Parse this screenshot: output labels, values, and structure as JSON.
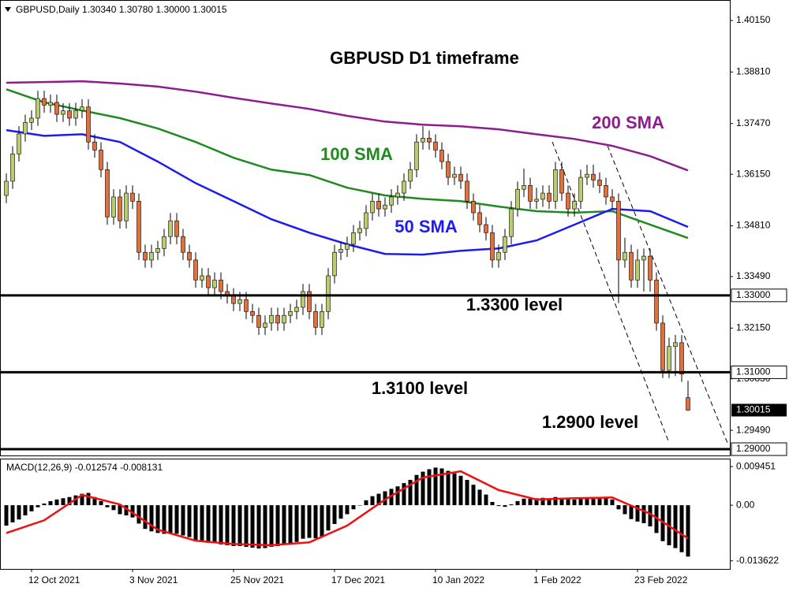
{
  "chart_data": {
    "type": "candlestick",
    "header": "GBPUSD,Daily  1.30340 1.30780 1.30000 1.30015",
    "title": "GBPUSD D1 timeframe",
    "xlim": [
      -1,
      114.625
    ],
    "xticks": [
      {
        "value": 4,
        "label": "12 Oct 2021"
      },
      {
        "value": 20,
        "label": "3 Nov 2021"
      },
      {
        "value": 36,
        "label": "25 Nov 2021"
      },
      {
        "value": 52,
        "label": "17 Dec 2021"
      },
      {
        "value": 68,
        "label": "10 Jan 2022"
      },
      {
        "value": 84,
        "label": "1 Feb 2022"
      },
      {
        "value": 100,
        "label": "23 Feb 2022"
      }
    ],
    "ylim": [
      1.28836,
      1.40683
    ],
    "yticks": [
      {
        "value": 1.4015,
        "label": "1.40150"
      },
      {
        "value": 1.3881,
        "label": "1.38810"
      },
      {
        "value": 1.3747,
        "label": "1.37470"
      },
      {
        "value": 1.3615,
        "label": "1.36150"
      },
      {
        "value": 1.3481,
        "label": "1.34810"
      },
      {
        "value": 1.3349,
        "label": "1.33490"
      },
      {
        "value": 1.3215,
        "label": "1.32150"
      },
      {
        "value": 1.3083,
        "label": "1.30830"
      },
      {
        "value": 1.2949,
        "label": "1.29490"
      }
    ],
    "up_color": "#b9cc70",
    "down_color": "#e2703c",
    "open": [
      1.356,
      1.3597,
      1.3668,
      1.372,
      1.375,
      1.3761,
      1.3812,
      1.3795,
      1.3802,
      1.3771,
      1.378,
      1.3761,
      1.3781,
      1.379,
      1.3699,
      1.3678,
      1.3627,
      1.3504,
      1.3556,
      1.3494,
      1.3566,
      1.3545,
      1.3412,
      1.3392,
      1.3412,
      1.3422,
      1.3453,
      1.3494,
      1.3453,
      1.3412,
      1.3392,
      1.334,
      1.3351,
      1.332,
      1.334,
      1.331,
      1.3299,
      1.3279,
      1.3289,
      1.3258,
      1.3248,
      1.3217,
      1.3228,
      1.3248,
      1.3228,
      1.3248,
      1.3258,
      1.3269,
      1.331,
      1.3258,
      1.3217,
      1.3258,
      1.3351,
      1.3412,
      1.342,
      1.3433,
      1.3463,
      1.3474,
      1.3515,
      1.3545,
      1.3525,
      1.3535,
      1.3556,
      1.3566,
      1.3597,
      1.3627,
      1.3699,
      1.3709,
      1.3699,
      1.3678,
      1.3648,
      1.3607,
      1.3615,
      1.3597,
      1.3545,
      1.3515,
      1.3484,
      1.3463,
      1.3392,
      1.3412,
      1.3453,
      1.3525,
      1.3576,
      1.3586,
      1.3545,
      1.355,
      1.3566,
      1.3545,
      1.3627,
      1.3566,
      1.3525,
      1.3545,
      1.3607,
      1.3615,
      1.36,
      1.3586,
      1.3556,
      1.3545,
      1.3392,
      1.3412,
      1.334,
      1.3392,
      1.3402,
      1.334,
      1.3228,
      1.3105,
      1.3167,
      1.3177,
      1.3034
    ],
    "high": [
      1.3617,
      1.3688,
      1.374,
      1.377,
      1.3781,
      1.3832,
      1.3832,
      1.3822,
      1.3822,
      1.38,
      1.38,
      1.3801,
      1.381,
      1.381,
      1.3719,
      1.3698,
      1.3647,
      1.3576,
      1.3576,
      1.3586,
      1.3586,
      1.3565,
      1.3432,
      1.3432,
      1.3442,
      1.3473,
      1.3514,
      1.3514,
      1.3473,
      1.3432,
      1.3412,
      1.3371,
      1.3371,
      1.336,
      1.336,
      1.333,
      1.3319,
      1.3309,
      1.3309,
      1.3278,
      1.3268,
      1.3248,
      1.3268,
      1.3268,
      1.3268,
      1.3278,
      1.3289,
      1.333,
      1.333,
      1.3278,
      1.3278,
      1.3371,
      1.3432,
      1.344,
      1.3453,
      1.3483,
      1.3494,
      1.3535,
      1.3565,
      1.3565,
      1.3555,
      1.3576,
      1.3586,
      1.3617,
      1.3647,
      1.3719,
      1.374,
      1.3729,
      1.3719,
      1.3698,
      1.3668,
      1.3635,
      1.3635,
      1.3617,
      1.3565,
      1.3535,
      1.3504,
      1.3483,
      1.3432,
      1.3473,
      1.3545,
      1.3596,
      1.363,
      1.3606,
      1.358,
      1.3586,
      1.3586,
      1.3647,
      1.3647,
      1.3586,
      1.3565,
      1.3627,
      1.364,
      1.364,
      1.362,
      1.3606,
      1.3576,
      1.3565,
      1.345,
      1.3432,
      1.342,
      1.3422,
      1.3422,
      1.336,
      1.3248,
      1.319,
      1.3197,
      1.3197,
      1.3078
    ],
    "low": [
      1.354,
      1.3577,
      1.3648,
      1.37,
      1.373,
      1.3741,
      1.3775,
      1.3775,
      1.3751,
      1.3751,
      1.3741,
      1.3741,
      1.3761,
      1.3679,
      1.3658,
      1.3607,
      1.3484,
      1.3484,
      1.3474,
      1.3474,
      1.3525,
      1.3392,
      1.3372,
      1.3372,
      1.3392,
      1.3402,
      1.3433,
      1.3433,
      1.3392,
      1.3372,
      1.332,
      1.332,
      1.33,
      1.33,
      1.329,
      1.3279,
      1.3259,
      1.3259,
      1.3238,
      1.3228,
      1.3197,
      1.3197,
      1.3208,
      1.3208,
      1.3208,
      1.3228,
      1.3238,
      1.3249,
      1.3238,
      1.3197,
      1.3197,
      1.3238,
      1.3331,
      1.3392,
      1.34,
      1.3413,
      1.3443,
      1.3454,
      1.3495,
      1.3505,
      1.3505,
      1.3515,
      1.3536,
      1.3546,
      1.3577,
      1.3607,
      1.3679,
      1.3679,
      1.3658,
      1.3628,
      1.3587,
      1.3587,
      1.3577,
      1.3525,
      1.3495,
      1.3464,
      1.3443,
      1.3372,
      1.3372,
      1.3392,
      1.3433,
      1.3505,
      1.3556,
      1.3525,
      1.3525,
      1.353,
      1.3525,
      1.3525,
      1.3546,
      1.3505,
      1.3505,
      1.3525,
      1.3587,
      1.358,
      1.3566,
      1.3536,
      1.3525,
      1.328,
      1.3372,
      1.332,
      1.332,
      1.331,
      1.331,
      1.3208,
      1.3085,
      1.3085,
      1.309,
      1.3075,
      1.3
    ],
    "close": [
      1.3597,
      1.3668,
      1.372,
      1.375,
      1.3761,
      1.3812,
      1.3795,
      1.3802,
      1.3771,
      1.378,
      1.3761,
      1.3781,
      1.379,
      1.3699,
      1.3678,
      1.3627,
      1.3504,
      1.3556,
      1.3494,
      1.3566,
      1.3545,
      1.3412,
      1.3392,
      1.3412,
      1.3422,
      1.3453,
      1.3494,
      1.3453,
      1.3412,
      1.3392,
      1.334,
      1.3351,
      1.332,
      1.334,
      1.331,
      1.3299,
      1.3279,
      1.3289,
      1.3258,
      1.3248,
      1.3217,
      1.3228,
      1.3248,
      1.3228,
      1.3248,
      1.3258,
      1.3269,
      1.331,
      1.3258,
      1.3217,
      1.3258,
      1.3351,
      1.3412,
      1.342,
      1.3433,
      1.3463,
      1.3474,
      1.3515,
      1.3545,
      1.3525,
      1.3535,
      1.3556,
      1.3566,
      1.3597,
      1.3627,
      1.3699,
      1.3709,
      1.3699,
      1.3678,
      1.3648,
      1.3607,
      1.3615,
      1.3597,
      1.3545,
      1.3515,
      1.3484,
      1.3463,
      1.3392,
      1.3412,
      1.3453,
      1.3525,
      1.3576,
      1.3586,
      1.3545,
      1.355,
      1.3566,
      1.3545,
      1.3627,
      1.3566,
      1.3525,
      1.3545,
      1.3607,
      1.3615,
      1.36,
      1.3586,
      1.3556,
      1.3545,
      1.3392,
      1.3412,
      1.334,
      1.3392,
      1.3402,
      1.334,
      1.3228,
      1.3105,
      1.3167,
      1.3177,
      1.3095,
      1.30015
    ],
    "sma": [
      {
        "name": "200 SMA",
        "color": "#8e1c8e",
        "x": [
          0,
          6,
          12,
          18,
          24,
          30,
          36,
          42,
          48,
          54,
          60,
          66,
          72,
          78,
          84,
          90,
          96,
          102,
          108
        ],
        "values": [
          1.3853,
          1.3855,
          1.3857,
          1.3851,
          1.3843,
          1.383,
          1.3814,
          1.3799,
          1.3785,
          1.3767,
          1.3752,
          1.3744,
          1.374,
          1.3732,
          1.3719,
          1.3707,
          1.3689,
          1.3662,
          1.3625
        ]
      },
      {
        "name": "100 SMA",
        "color": "#1f8a1f",
        "x": [
          0,
          6,
          12,
          18,
          24,
          30,
          36,
          42,
          48,
          54,
          60,
          66,
          72,
          78,
          84,
          90,
          96,
          102,
          108
        ],
        "values": [
          1.3836,
          1.3802,
          1.3781,
          1.3761,
          1.3734,
          1.3699,
          1.3658,
          1.3627,
          1.3613,
          1.358,
          1.356,
          1.3551,
          1.3545,
          1.3531,
          1.3519,
          1.3515,
          1.3519,
          1.3484,
          1.3449
        ]
      },
      {
        "name": "50 SMA",
        "color": "#1c1cf0",
        "x": [
          0,
          6,
          12,
          18,
          24,
          30,
          36,
          42,
          48,
          54,
          60,
          66,
          72,
          78,
          84,
          90,
          96,
          102,
          108
        ],
        "values": [
          1.373,
          1.3715,
          1.3719,
          1.3699,
          1.3648,
          1.3592,
          1.3545,
          1.3498,
          1.3463,
          1.3433,
          1.3408,
          1.3406,
          1.3416,
          1.3422,
          1.3443,
          1.3484,
          1.3525,
          1.3519,
          1.3478
        ]
      }
    ],
    "levels": [
      {
        "name": "1.3300 level",
        "value": 1.33,
        "label": "1.33000"
      },
      {
        "name": "1.3100 level",
        "value": 1.31,
        "label": "1.31000"
      },
      {
        "name": "1.2900 level",
        "value": 1.29,
        "label": "1.29000"
      }
    ],
    "current": {
      "value": 1.30015,
      "label": "1.30015"
    },
    "macd": {
      "header": "MACD(12,26,9) -0.012574 -0.008131",
      "ylim": [
        -0.0156,
        0.0114
      ],
      "yticks": [
        0.009451,
        {
          "value": 0,
          "label": "0.00"
        },
        -0.013622
      ],
      "color": "#000000",
      "values": [
        -0.005,
        -0.0042,
        -0.0035,
        -0.0025,
        -0.0015,
        -0.0005,
        0.0004,
        0.001,
        0.0014,
        0.0017,
        0.002,
        0.0024,
        0.0028,
        0.003,
        0.002,
        0.001,
        -0.0005,
        -0.0012,
        -0.0022,
        -0.0025,
        -0.003,
        -0.0045,
        -0.0058,
        -0.0064,
        -0.0068,
        -0.007,
        -0.0068,
        -0.007,
        -0.0074,
        -0.0078,
        -0.0085,
        -0.0088,
        -0.0092,
        -0.0093,
        -0.0096,
        -0.0098,
        -0.01,
        -0.01,
        -0.0102,
        -0.0104,
        -0.0106,
        -0.0105,
        -0.0102,
        -0.01,
        -0.0097,
        -0.0094,
        -0.009,
        -0.0082,
        -0.008,
        -0.0081,
        -0.0076,
        -0.0062,
        -0.0046,
        -0.0033,
        -0.0022,
        -0.001,
        0.0,
        0.0012,
        0.0022,
        0.0028,
        0.0034,
        0.004,
        0.0046,
        0.0054,
        0.0062,
        0.0074,
        0.0082,
        0.0088,
        0.0092,
        0.009,
        0.0084,
        0.0078,
        0.0072,
        0.0062,
        0.005,
        0.0038,
        0.0026,
        0.0008,
        -0.0002,
        -0.0004,
        0.0002,
        0.001,
        0.0016,
        0.0016,
        0.0017,
        0.0018,
        0.0016,
        0.002,
        0.0018,
        0.0015,
        0.0014,
        0.0016,
        0.0018,
        0.002,
        0.002,
        0.0018,
        0.0014,
        -0.001,
        -0.0022,
        -0.0034,
        -0.004,
        -0.0044,
        -0.0052,
        -0.0068,
        -0.0088,
        -0.0098,
        -0.0105,
        -0.0115,
        -0.012574
      ],
      "signal": {
        "color": "#ee1111",
        "x": [
          0,
          6,
          12,
          18,
          24,
          30,
          36,
          42,
          48,
          54,
          60,
          66,
          72,
          78,
          84,
          90,
          96,
          102,
          108
        ],
        "values": [
          -0.0068,
          -0.0037,
          0.0025,
          0.0002,
          -0.006,
          -0.0087,
          -0.0095,
          -0.0098,
          -0.0091,
          -0.005,
          0.0014,
          0.0068,
          0.0083,
          0.0037,
          0.0014,
          0.0017,
          0.0019,
          -0.0021,
          -0.008131
        ]
      }
    }
  }
}
